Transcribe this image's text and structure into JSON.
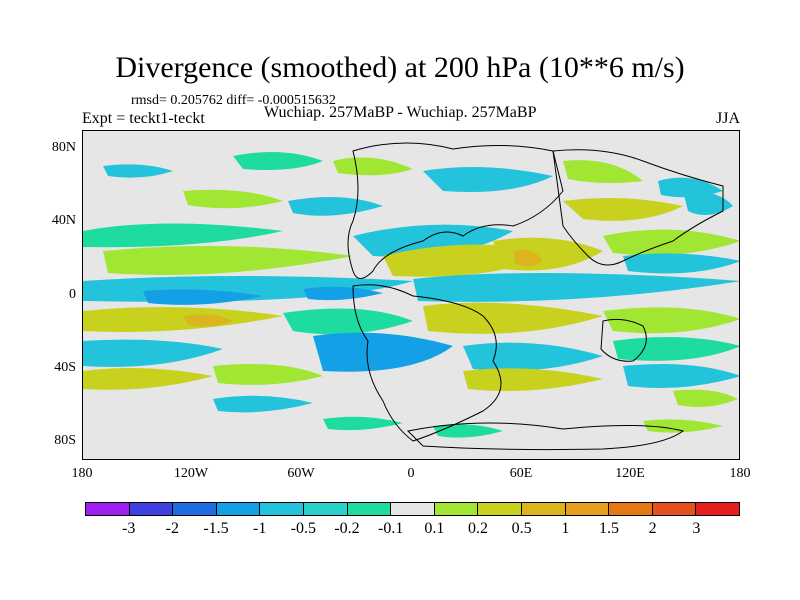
{
  "title": "Divergence (smoothed) at 200 hPa (10**6 m/s)",
  "stats": "rmsd= 0.205762 diff= -0.000515632",
  "expt": "Expt = teckt1-teckt",
  "runs": "Wuchiap. 257MaBP - Wuchiap. 257MaBP",
  "season": "JJA",
  "yaxis": [
    "80N",
    "40N",
    "0",
    "40S",
    "80S"
  ],
  "xaxis": [
    "180",
    "120W",
    "60W",
    "0",
    "60E",
    "120E",
    "180"
  ],
  "colorbar": {
    "colors": [
      "#a020f0",
      "#4040e0",
      "#1e6ee0",
      "#14a0e6",
      "#23c3dc",
      "#28d2c8",
      "#1edca0",
      "#e6e6e6",
      "#a0e632",
      "#c8d21e",
      "#dcb41e",
      "#e6a01e",
      "#e67814",
      "#e6501e",
      "#e61e1e"
    ],
    "labels": [
      "-3",
      "-2",
      "-1.5",
      "-1",
      "-0.5",
      "-0.2",
      "-0.1",
      "0.1",
      "0.2",
      "0.5",
      "1",
      "1.5",
      "2",
      "3"
    ]
  }
}
